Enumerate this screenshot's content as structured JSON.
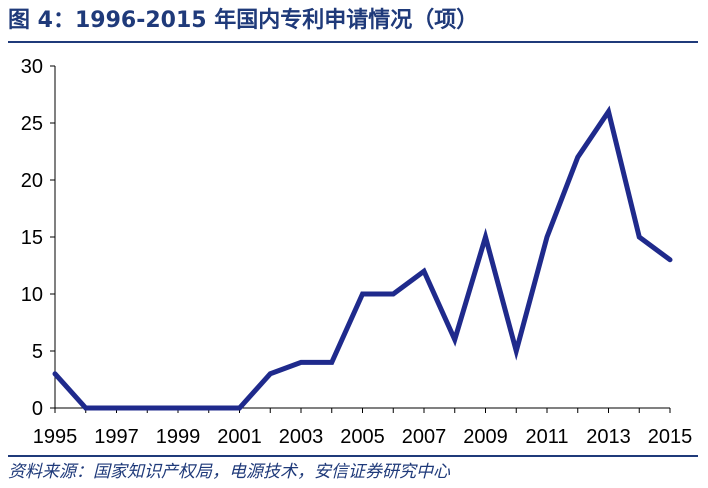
{
  "title": "图 4：1996-2015 年国内专利申请情况（项）",
  "source": "资料来源：国家知识产权局，电源技术，安信证券研究中心",
  "chart_data": {
    "type": "line",
    "title": "图 4：1996-2015 年国内专利申请情况（项）",
    "xlabel": "",
    "ylabel": "",
    "x": [
      1995,
      1996,
      1997,
      1998,
      1999,
      2000,
      2001,
      2002,
      2003,
      2004,
      2005,
      2006,
      2007,
      2008,
      2009,
      2010,
      2011,
      2012,
      2013,
      2014,
      2015
    ],
    "xticks": [
      1995,
      1997,
      1999,
      2001,
      2003,
      2005,
      2007,
      2009,
      2011,
      2013,
      2015
    ],
    "xtick_labels": [
      "1995",
      "1997",
      "1999",
      "2001",
      "2003",
      "2005",
      "2007",
      "2009",
      "2011",
      "2013",
      "2015"
    ],
    "yticks": [
      0,
      5,
      10,
      15,
      20,
      25,
      30
    ],
    "ytick_labels": [
      "0",
      "5",
      "10",
      "15",
      "20",
      "25",
      "30"
    ],
    "ylim": [
      0,
      30
    ],
    "xlim": [
      1995,
      2015
    ],
    "grid": false,
    "series": [
      {
        "values": [
          3,
          0,
          0,
          0,
          0,
          0,
          0,
          3,
          4,
          4,
          10,
          10,
          12,
          6,
          15,
          5,
          15,
          22,
          26,
          15,
          13
        ],
        "color": "#1f2a8c"
      }
    ]
  }
}
